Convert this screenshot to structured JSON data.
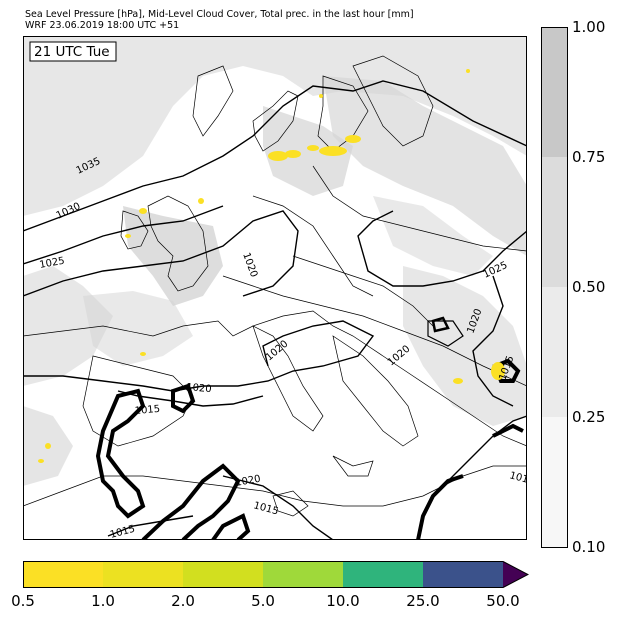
{
  "header": {
    "title_line1": "Sea Level Pressure [hPa], Mid-Level Cloud Cover, Total prec. in the last hour [mm]",
    "title_line2": "WRF 23.06.2019 18:00 UTC +51"
  },
  "map": {
    "time_label": "21 UTC Tue",
    "isobar_labels": [
      "1035",
      "1030",
      "1025",
      "1025",
      "1020",
      "1020",
      "1020",
      "1020",
      "1020",
      "1015",
      "1015",
      "1015",
      "1015",
      "1020",
      "101"
    ]
  },
  "cloud_colorbar": {
    "ticks": [
      "1.00",
      "0.75",
      "0.50",
      "0.25",
      "0.10"
    ],
    "colors": [
      "#c8c8c8",
      "#dcdcdc",
      "#ebebeb",
      "#f7f7f7"
    ]
  },
  "precip_colorbar": {
    "ticks": [
      "0.5",
      "1.0",
      "2.0",
      "5.0",
      "10.0",
      "25.0",
      "50.0"
    ],
    "colors": [
      "#fbe025",
      "#ece121",
      "#d2df1f",
      "#9fd93a",
      "#2fb47c",
      "#3b528b",
      "#440154"
    ]
  },
  "colors": {
    "isobar": "#000000",
    "border": "#000000",
    "precip": "#fbe025"
  }
}
